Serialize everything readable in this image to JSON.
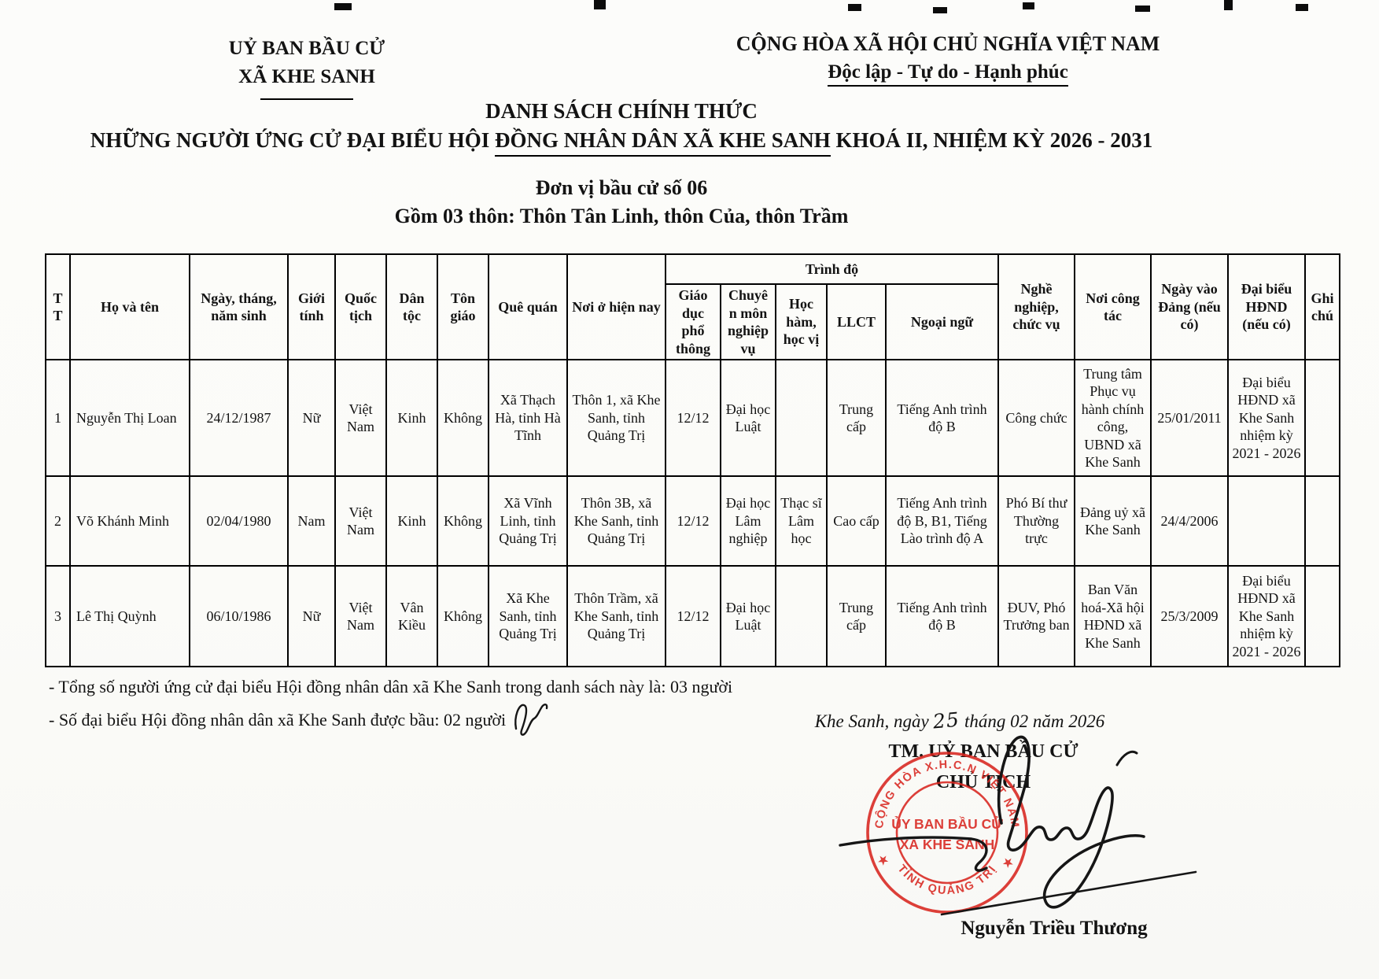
{
  "header": {
    "left_line1": "UỶ BAN BẦU CỬ",
    "left_line2": "XÃ KHE SANH",
    "right_line1": "CỘNG HÒA XÃ HỘI CHỦ NGHĨA VIỆT NAM",
    "right_line2": "Độc lập - Tự do - Hạnh phúc"
  },
  "title": {
    "line1": "DANH SÁCH CHÍNH THỨC",
    "line2_pre": "NHỮNG NGƯỜI  ỨNG CỬ ĐẠI BIỂU HỘI ",
    "line2_underlined": "ĐỒNG NHÂN DÂN XÃ KHE SANH",
    "line2_post": " KHOÁ II, NHIỆM KỲ 2026 - 2031",
    "unit": "Đơn vị bầu cử số 06",
    "villages": "Gồm 03 thôn: Thôn Tân Linh, thôn Của, thôn Trầm"
  },
  "table": {
    "group_header": "Trình độ",
    "columns": [
      "TT",
      "Họ và tên",
      "Ngày, tháng, năm sinh",
      "Giới tính",
      "Quốc tịch",
      "Dân tộc",
      "Tôn giáo",
      "Quê quán",
      "Nơi ở hiện nay",
      "Giáo dục phổ thông",
      "Chuyên môn nghiệp vụ",
      "Học hàm, học vị",
      "LLCT",
      "Ngoại ngữ",
      "Nghề nghiệp, chức vụ",
      "Nơi công tác",
      "Ngày vào Đảng (nếu có)",
      "Đại biểu HĐND (nếu có)",
      "Ghi chú"
    ],
    "rows": [
      [
        "1",
        "Nguyễn Thị Loan",
        "24/12/1987",
        "Nữ",
        "Việt Nam",
        "Kinh",
        "Không",
        "Xã Thạch Hà, tỉnh Hà Tĩnh",
        "Thôn 1, xã Khe Sanh, tỉnh Quảng Trị",
        "12/12",
        "Đại học Luật",
        "",
        "Trung cấp",
        "Tiếng Anh trình độ B",
        "Công chức",
        "Trung tâm Phục vụ hành chính công, UBND xã Khe Sanh",
        "25/01/2011",
        "Đại biểu HĐND xã Khe Sanh nhiệm kỳ 2021 - 2026",
        ""
      ],
      [
        "2",
        "Võ Khánh Minh",
        "02/04/1980",
        "Nam",
        "Việt Nam",
        "Kinh",
        "Không",
        "Xã Vĩnh Linh, tỉnh Quảng Trị",
        "Thôn 3B, xã Khe Sanh, tỉnh Quảng Trị",
        "12/12",
        "Đại học Lâm nghiệp",
        "Thạc sĩ Lâm học",
        "Cao cấp",
        "Tiếng Anh trình độ B, B1, Tiếng Lào trình độ A",
        "Phó Bí thư Thường trực",
        "Đảng uỷ xã Khe Sanh",
        "24/4/2006",
        "",
        ""
      ],
      [
        "3",
        "Lê Thị Quỳnh",
        "06/10/1986",
        "Nữ",
        "Việt Nam",
        "Vân Kiều",
        "Không",
        "Xã Khe Sanh, tỉnh Quảng Trị",
        "Thôn Trầm, xã Khe Sanh, tỉnh Quảng Trị",
        "12/12",
        "Đại học Luật",
        "",
        "Trung cấp",
        "Tiếng Anh trình độ B",
        "ĐUV, Phó Trưởng ban",
        "Ban Văn hoá-Xã hội HĐND xã Khe Sanh",
        "25/3/2009",
        "Đại biểu HĐND xã Khe Sanh nhiệm kỳ 2021 - 2026",
        ""
      ]
    ]
  },
  "footer": {
    "total_line": "- Tổng số người ứng cử đại biểu Hội đồng nhân dân xã Khe Sanh trong danh sách này là: 03 người",
    "elected_line": "- Số đại biểu Hội đồng nhân dân xã Khe Sanh được bầu: 02 người"
  },
  "signature": {
    "date_pre": "Khe Sanh, ngày ",
    "date_day": "25",
    "date_post": " tháng 02 năm 2026",
    "org": "TM. UỶ BAN BẦU CỬ",
    "role": "CHỦ TỊCH",
    "name": "Nguyễn Triều Thương",
    "stamp": {
      "outer_top": "CỘNG HÒA X.H.C.N VIỆT NAM",
      "outer_bottom": "TỈNH QUẢNG TRỊ",
      "inner_line1": "ỦY BAN BẦU CỬ",
      "inner_line2": "XÃ KHE SANH",
      "color": "#d9261f"
    }
  }
}
